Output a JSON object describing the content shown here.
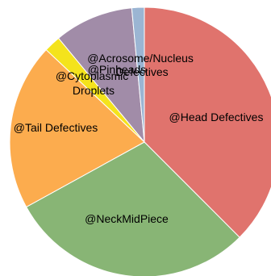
{
  "chart_data": {
    "type": "pie",
    "start_angle_deg": 0,
    "direction": "clockwise",
    "slices": [
      {
        "label": "@Head Defectives",
        "value": 37.5,
        "color": "#e0736d"
      },
      {
        "label": "@NeckMidPiece",
        "value": 29.5,
        "color": "#88b575"
      },
      {
        "label": "@Tail Defectives",
        "value": 20.0,
        "color": "#fcac4e"
      },
      {
        "label": "@Cytoplasmic Droplets",
        "value": 2.0,
        "color": "#f4e31c"
      },
      {
        "label": "@Acrosome/Nucleus Defectives",
        "value": 9.5,
        "color": "#a18ca8"
      },
      {
        "label": "@Pinheads",
        "value": 1.5,
        "color": "#9bb5d3"
      }
    ]
  }
}
